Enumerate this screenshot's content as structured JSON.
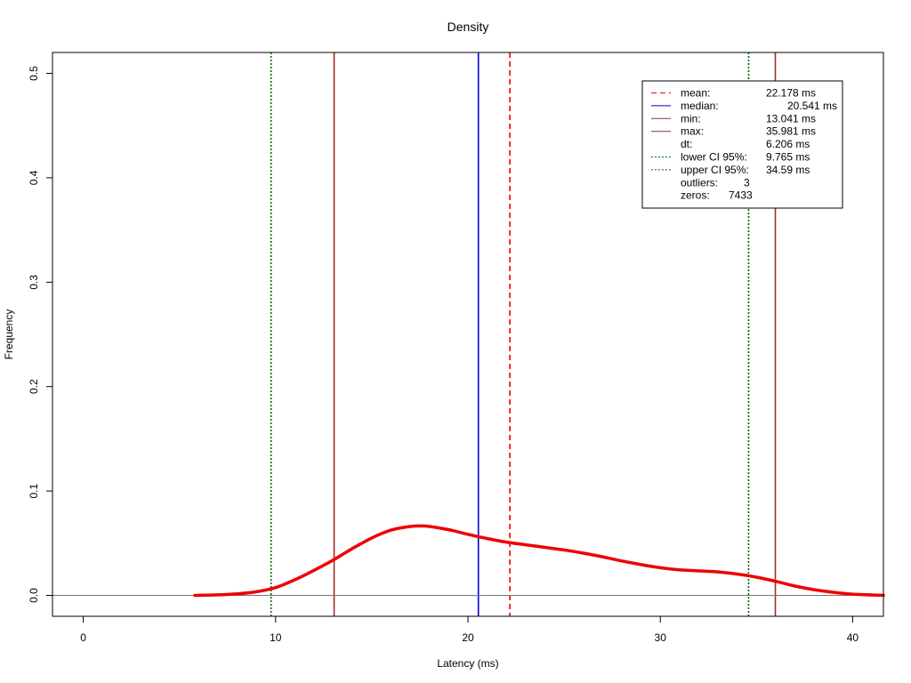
{
  "chart_data": {
    "type": "line",
    "title": "Density",
    "xlabel": "Latency (ms)",
    "ylabel": "Frequency",
    "xlim": [
      -1.6,
      41.6
    ],
    "ylim": [
      -0.02,
      0.52
    ],
    "xticks": [
      0,
      10,
      20,
      30,
      40
    ],
    "yticks": [
      0.0,
      0.1,
      0.2,
      0.3,
      0.4,
      0.5
    ],
    "xtick_labels": [
      "0",
      "10",
      "20",
      "30",
      "40"
    ],
    "ytick_labels": [
      "0.0",
      "0.1",
      "0.2",
      "0.3",
      "0.4",
      "0.5"
    ],
    "baseline_y": 0,
    "grid": false,
    "legend_position": "top-right",
    "colors": {
      "density": "#ee0000",
      "mean": "#ee0000",
      "median": "#0000cd",
      "minmax": "#a52a2a",
      "ci": "#006400",
      "baseline": "#777777"
    },
    "series": [
      {
        "x": [
          5.8,
          7,
          8,
          9,
          10,
          11,
          12,
          13,
          14,
          15,
          16,
          17,
          17.6,
          18,
          19,
          20,
          21,
          22,
          23,
          24,
          25,
          26,
          27,
          28,
          29,
          30,
          31,
          32,
          33,
          34,
          35,
          36,
          37,
          38,
          39,
          40,
          41.6
        ],
        "y": [
          0.0,
          0.0005,
          0.0015,
          0.0035,
          0.0075,
          0.015,
          0.024,
          0.034,
          0.045,
          0.055,
          0.0625,
          0.066,
          0.0665,
          0.066,
          0.063,
          0.0585,
          0.0545,
          0.051,
          0.0485,
          0.046,
          0.0435,
          0.0405,
          0.037,
          0.033,
          0.0295,
          0.0265,
          0.0245,
          0.0235,
          0.0225,
          0.0205,
          0.0175,
          0.0135,
          0.009,
          0.0055,
          0.003,
          0.0012,
          0.0001
        ]
      }
    ],
    "vlines": [
      {
        "stat": "mean",
        "x": 22.178,
        "style": "dashed",
        "color": "#ee0000"
      },
      {
        "stat": "median",
        "x": 20.541,
        "style": "solid",
        "color": "#0000cd"
      },
      {
        "stat": "min",
        "x": 13.041,
        "style": "solid",
        "color": "#a52a2a"
      },
      {
        "stat": "max",
        "x": 35.981,
        "style": "solid",
        "color": "#a52a2a"
      },
      {
        "stat": "lower CI 95%",
        "x": 9.765,
        "style": "dotted",
        "color": "#006400"
      },
      {
        "stat": "upper CI 95%",
        "x": 34.59,
        "style": "dotted",
        "color": "#006400"
      }
    ],
    "legend": [
      {
        "label": "mean:",
        "value": "22.178 ms",
        "line": "dashed",
        "color": "#ee0000"
      },
      {
        "label": "median:",
        "value": "20.541 ms",
        "line": "solid",
        "color": "#0000cd"
      },
      {
        "label": "min:",
        "value": "13.041 ms",
        "line": "solid",
        "color": "#a52a2a"
      },
      {
        "label": "max:",
        "value": "35.981 ms",
        "line": "solid",
        "color": "#a52a2a"
      },
      {
        "label": "dt:",
        "value": "6.206 ms",
        "line": "none",
        "color": ""
      },
      {
        "label": "lower CI 95%:",
        "value": "9.765 ms",
        "line": "dotted",
        "color": "#006400"
      },
      {
        "label": "upper CI 95%:",
        "value": "34.59 ms",
        "line": "dotted",
        "color": "#006400"
      },
      {
        "label": "outliers:",
        "value": "3",
        "line": "none",
        "color": ""
      },
      {
        "label": "zeros:",
        "value": "7433",
        "line": "none",
        "color": ""
      }
    ]
  }
}
